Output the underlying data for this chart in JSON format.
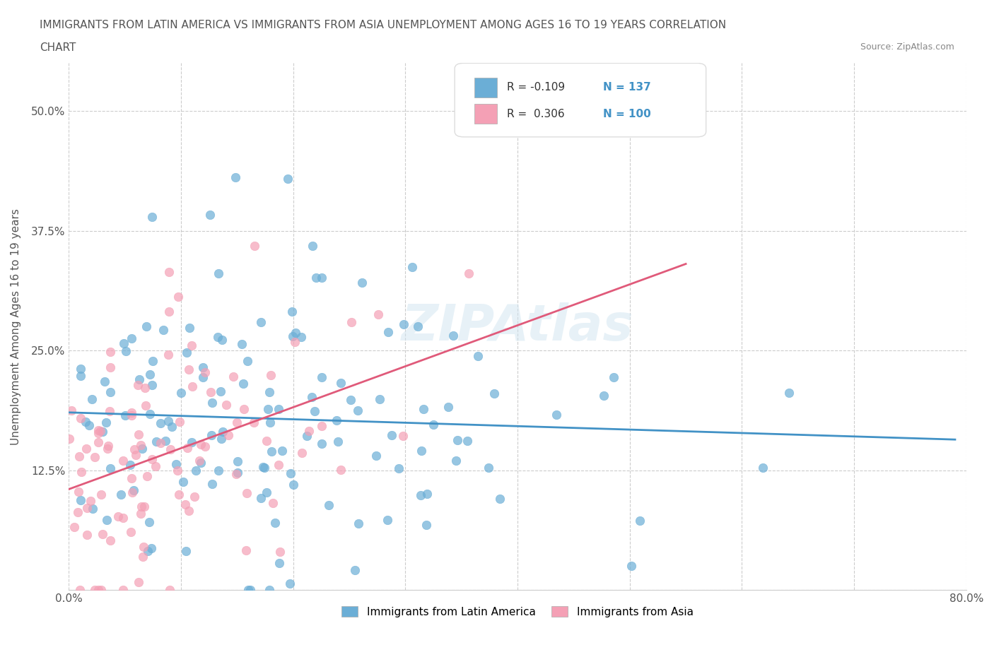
{
  "title_line1": "IMMIGRANTS FROM LATIN AMERICA VS IMMIGRANTS FROM ASIA UNEMPLOYMENT AMONG AGES 16 TO 19 YEARS CORRELATION",
  "title_line2": "CHART",
  "source_text": "Source: ZipAtlas.com",
  "xlabel": "",
  "ylabel": "Unemployment Among Ages 16 to 19 years",
  "xmin": 0.0,
  "xmax": 0.8,
  "ymin": 0.0,
  "ymax": 0.55,
  "xticks": [
    0.0,
    0.1,
    0.2,
    0.3,
    0.4,
    0.5,
    0.6,
    0.7,
    0.8
  ],
  "xticklabels": [
    "0.0%",
    "",
    "",
    "",
    "",
    "",
    "",
    "",
    "80.0%"
  ],
  "yticks": [
    0.0,
    0.125,
    0.25,
    0.375,
    0.5
  ],
  "yticklabels": [
    "",
    "12.5%",
    "25.0%",
    "37.5%",
    "50.0%"
  ],
  "legend_r1": "R = -0.109",
  "legend_n1": "N = 137",
  "legend_r2": "R =  0.306",
  "legend_n2": "N = 100",
  "color_blue": "#6baed6",
  "color_pink": "#f4a0b5",
  "color_blue_line": "#4292c6",
  "color_pink_line": "#e05a7a",
  "color_title": "#333333",
  "color_source": "#888888",
  "watermark": "ZIPAtlas",
  "seed": 42,
  "latin_america_R": -0.109,
  "latin_america_N": 137,
  "asia_R": 0.306,
  "asia_N": 100
}
